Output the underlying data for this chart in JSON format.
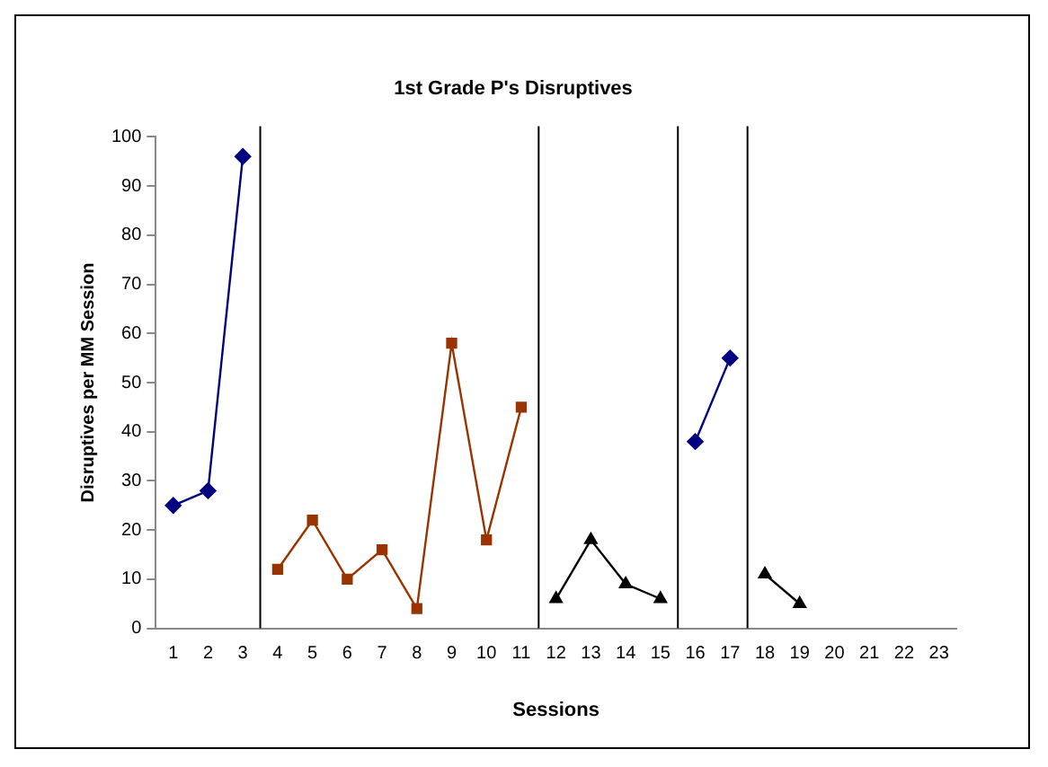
{
  "chart_data": {
    "type": "line",
    "title": "1st Grade P's Disruptives",
    "xlabel": "Sessions",
    "ylabel": "Disruptives per MM Session",
    "xlim": [
      0.5,
      23.5
    ],
    "xticks": [
      1,
      2,
      3,
      4,
      5,
      6,
      7,
      8,
      9,
      10,
      11,
      12,
      13,
      14,
      15,
      16,
      17,
      18,
      19,
      20,
      21,
      22,
      23
    ],
    "ylim": [
      0,
      100
    ],
    "yticks": [
      0,
      10,
      20,
      30,
      40,
      50,
      60,
      70,
      80,
      90,
      100
    ],
    "grid": false,
    "legend": false,
    "series": [
      {
        "color": "#000080",
        "marker": "diamond",
        "x": [
          1,
          2,
          3
        ],
        "values": [
          25,
          28,
          96
        ]
      },
      {
        "color": "#993300",
        "marker": "square",
        "x": [
          4,
          5,
          6,
          7,
          8,
          9,
          10,
          11
        ],
        "values": [
          12,
          22,
          10,
          16,
          4,
          58,
          18,
          45
        ]
      },
      {
        "color": "#000000",
        "marker": "triangle",
        "x": [
          12,
          13,
          14,
          15
        ],
        "values": [
          6,
          18,
          9,
          6
        ]
      },
      {
        "color": "#000080",
        "marker": "diamond",
        "x": [
          16,
          17
        ],
        "values": [
          38,
          55
        ]
      },
      {
        "color": "#000000",
        "marker": "triangle",
        "x": [
          18,
          19
        ],
        "values": [
          11,
          5
        ]
      }
    ],
    "ref_lines": [
      {
        "axis": "x",
        "value": 3.5,
        "color": "#000000"
      },
      {
        "axis": "x",
        "value": 11.5,
        "color": "#000000"
      },
      {
        "axis": "x",
        "value": 15.5,
        "color": "#000000"
      },
      {
        "axis": "x",
        "value": 17.5,
        "color": "#000000"
      }
    ]
  }
}
